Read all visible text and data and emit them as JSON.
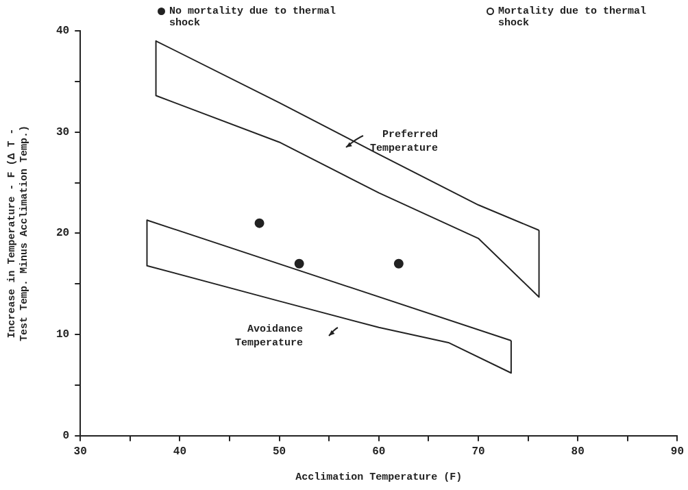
{
  "chart_data": {
    "type": "line",
    "xlabel": "Acclimation Temperature (F)",
    "ylabel": "Increase in Temperature - F (Δ T -\nTest Temp. Minus Acclimation Temp.)",
    "xlim": [
      30,
      90
    ],
    "ylim": [
      0,
      40
    ],
    "xticks": [
      30,
      {
        "value": 35,
        "label": null
      },
      40,
      {
        "value": 45,
        "label": null
      },
      50,
      {
        "value": 55,
        "label": null
      },
      60,
      {
        "value": 65,
        "label": null
      },
      70,
      {
        "value": 75,
        "label": null
      },
      80,
      {
        "value": 85,
        "label": null
      },
      90
    ],
    "yticks": [
      0,
      {
        "value": 5,
        "label": null
      },
      10,
      {
        "value": 15,
        "label": null
      },
      20,
      {
        "value": 25,
        "label": null
      },
      30,
      {
        "value": 35,
        "label": null
      },
      40
    ],
    "grid": false,
    "legend": "top",
    "marker": "none",
    "series": [
      {
        "color": "#222222",
        "x": [
          37.6,
          50,
          60,
          70,
          76.1
        ],
        "values": [
          39,
          32.9,
          27.8,
          22.8,
          20.3
        ]
      },
      {
        "color": "#222222",
        "x": [
          37.6,
          37.6,
          50,
          60,
          70,
          76.1,
          76.1
        ],
        "values": [
          39,
          33.6,
          29,
          24,
          19.5,
          13.7,
          20.3
        ]
      },
      {
        "color": "#222222",
        "x": [
          36.7,
          73.3
        ],
        "values": [
          21.3,
          9.4
        ]
      },
      {
        "color": "#222222",
        "x": [
          36.7,
          36.7,
          50,
          60,
          67,
          73.3,
          73.3
        ],
        "values": [
          21.3,
          16.8,
          13.3,
          10.7,
          9.2,
          6.2,
          9.4
        ]
      },
      {
        "type": "scatter",
        "marker": "circle",
        "name": "No mortality due to thermal shock",
        "color": "#222222",
        "x": [
          48,
          52,
          62
        ],
        "values": [
          21,
          17,
          17
        ]
      },
      {
        "type": "scatter",
        "marker": "circle",
        "name": "Mortality due to thermal shock",
        "color": "#222222"
      }
    ],
    "annotations": [
      "Preferred\nTemperature",
      "Avoidance\nTemperature"
    ]
  }
}
